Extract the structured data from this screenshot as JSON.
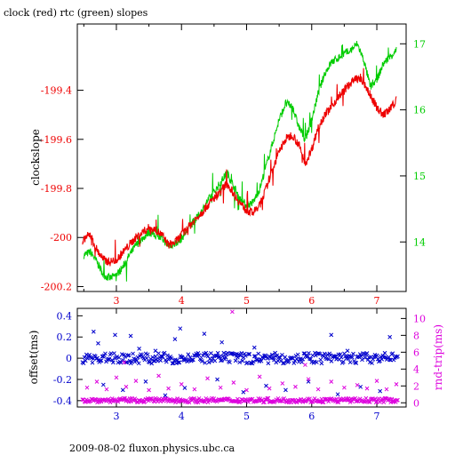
{
  "chart_data": [
    {
      "type": "line",
      "title": "clock (red) rtc (green) slopes",
      "ylabel": "clockslope",
      "xlim": [
        2.4,
        7.45
      ],
      "x_ticks": [
        3,
        4,
        5,
        6,
        7
      ],
      "x_tick_labels": [
        "3",
        "4",
        "5",
        "6",
        "7"
      ],
      "ylim": [
        -200.22,
        -199.13
      ],
      "y_ticks": [
        -200.2,
        -200,
        -199.8,
        -199.6,
        -199.4
      ],
      "y_tick_labels": [
        "-200.2",
        "-200",
        "-199.8",
        "-199.6",
        "-199.4"
      ],
      "y2lim": [
        13.25,
        17.3
      ],
      "y2_ticks": [
        14,
        15,
        16,
        17
      ],
      "y2_tick_labels": [
        "14",
        "15",
        "16",
        "17"
      ],
      "colors": {
        "clock": "#ee0000",
        "rtc": "#00cc00"
      },
      "series": [
        {
          "axis": "left",
          "x": [
            2.48,
            2.52,
            2.6,
            2.7,
            2.8,
            2.9,
            3.0,
            3.1,
            3.2,
            3.3,
            3.4,
            3.5,
            3.6,
            3.7,
            3.8,
            3.9,
            4.0,
            4.1,
            4.2,
            4.3,
            4.4,
            4.5,
            4.6,
            4.7,
            4.8,
            4.9,
            5.0,
            5.1,
            5.2,
            5.3,
            5.4,
            5.5,
            5.6,
            5.7,
            5.8,
            5.9,
            6.0,
            6.1,
            6.2,
            6.3,
            6.4,
            6.5,
            6.6,
            6.7,
            6.8,
            6.9,
            7.0,
            7.1,
            7.2,
            7.3
          ],
          "values": [
            -200.03,
            -200.0,
            -199.99,
            -200.05,
            -200.09,
            -200.1,
            -200.09,
            -200.06,
            -200.03,
            -200.0,
            -199.98,
            -199.96,
            -199.97,
            -199.99,
            -200.03,
            -200.02,
            -199.99,
            -199.96,
            -199.93,
            -199.9,
            -199.87,
            -199.84,
            -199.81,
            -199.78,
            -199.82,
            -199.86,
            -199.89,
            -199.9,
            -199.87,
            -199.8,
            -199.72,
            -199.65,
            -199.6,
            -199.58,
            -199.62,
            -199.7,
            -199.64,
            -199.55,
            -199.5,
            -199.47,
            -199.43,
            -199.4,
            -199.37,
            -199.35,
            -199.37,
            -199.42,
            -199.47,
            -199.5,
            -199.48,
            -199.44
          ]
        },
        {
          "axis": "right",
          "x": [
            2.5,
            2.6,
            2.7,
            2.8,
            2.9,
            3.0,
            3.1,
            3.2,
            3.3,
            3.4,
            3.5,
            3.6,
            3.7,
            3.8,
            3.9,
            4.0,
            4.1,
            4.2,
            4.3,
            4.4,
            4.5,
            4.6,
            4.7,
            4.8,
            4.9,
            5.0,
            5.1,
            5.2,
            5.3,
            5.4,
            5.5,
            5.6,
            5.7,
            5.8,
            5.9,
            6.0,
            6.1,
            6.2,
            6.3,
            6.4,
            6.5,
            6.6,
            6.7,
            6.8,
            6.9,
            7.0,
            7.1,
            7.2,
            7.3
          ],
          "values": [
            13.8,
            13.85,
            13.7,
            13.5,
            13.45,
            13.5,
            13.62,
            13.8,
            13.95,
            14.05,
            14.15,
            14.1,
            14.05,
            13.95,
            13.97,
            14.05,
            14.2,
            14.32,
            14.45,
            14.62,
            14.75,
            14.9,
            15.05,
            14.85,
            14.65,
            14.55,
            14.6,
            14.8,
            15.15,
            15.5,
            15.85,
            16.1,
            16.05,
            15.75,
            15.55,
            15.85,
            16.25,
            16.55,
            16.72,
            16.78,
            16.85,
            16.9,
            17.0,
            16.75,
            16.35,
            16.45,
            16.7,
            16.8,
            16.9
          ]
        }
      ]
    },
    {
      "type": "scatter",
      "ylabel": "offset(ms)",
      "y2label": "rnd-trip(ms)",
      "xlim": [
        2.4,
        7.45
      ],
      "x_ticks": [
        3,
        4,
        5,
        6,
        7
      ],
      "x_tick_labels": [
        "3",
        "4",
        "5",
        "6",
        "7"
      ],
      "ylim": [
        -0.46,
        0.47
      ],
      "y_ticks": [
        -0.4,
        -0.2,
        0,
        0.2,
        0.4
      ],
      "y_tick_labels": [
        "-0.4",
        "-0.2",
        "0",
        "0.2",
        "0.4"
      ],
      "y2lim": [
        -0.5,
        11.2
      ],
      "y2_ticks": [
        0,
        2,
        4,
        6,
        8,
        10
      ],
      "y2_tick_labels": [
        "0",
        "2",
        "4",
        "6",
        "8",
        "10"
      ],
      "colors": {
        "offset": "#0000cc",
        "round_trip": "#dd00dd"
      },
      "series": [
        {
          "axis": "left",
          "x": [
            2.65,
            2.72,
            2.98,
            3.22,
            3.35,
            3.6,
            3.9,
            3.98,
            4.35,
            4.62,
            4.85,
            5.12,
            5.45,
            6.05,
            6.3,
            6.55,
            7.2,
            2.8,
            3.1,
            3.45,
            3.75,
            4.05,
            4.55,
            4.95,
            5.3,
            5.6,
            5.95,
            6.4,
            6.75,
            7.05
          ],
          "values": [
            0.25,
            0.14,
            0.22,
            0.21,
            0.09,
            0.07,
            0.18,
            0.28,
            0.23,
            0.15,
            0.04,
            0.1,
            0.02,
            0.05,
            0.22,
            0.07,
            0.2,
            -0.25,
            -0.3,
            -0.22,
            -0.35,
            -0.28,
            -0.2,
            -0.32,
            -0.26,
            -0.3,
            -0.22,
            -0.34,
            -0.27,
            -0.31
          ]
        },
        {
          "axis": "right",
          "x": [
            2.55,
            2.7,
            2.85,
            3.0,
            3.15,
            3.3,
            3.5,
            3.65,
            3.8,
            4.0,
            4.2,
            4.4,
            4.6,
            4.8,
            5.0,
            5.2,
            5.35,
            5.55,
            5.75,
            5.95,
            6.1,
            6.3,
            6.5,
            6.7,
            6.85,
            7.0,
            7.15,
            7.3,
            4.78,
            3.12,
            5.9
          ],
          "values": [
            1.8,
            2.5,
            1.6,
            3.0,
            1.9,
            2.6,
            1.5,
            3.2,
            1.7,
            2.2,
            1.6,
            2.9,
            1.8,
            2.4,
            1.5,
            3.1,
            1.7,
            2.3,
            1.9,
            2.8,
            1.6,
            2.5,
            1.8,
            2.1,
            1.7,
            2.6,
            1.6,
            2.2,
            10.8,
            4.8,
            4.5
          ]
        }
      ]
    }
  ],
  "footer": "2009-08-02 fluxon.physics.ubc.ca"
}
